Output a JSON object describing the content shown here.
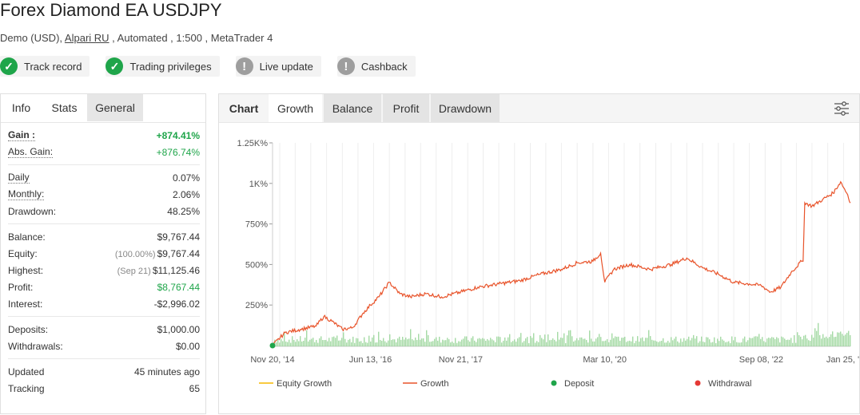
{
  "header": {
    "title": "Forex Diamond EA USDJPY",
    "account_type": "Demo (USD),",
    "broker": "Alpari RU",
    "details": ", Automated , 1:500 , MetaTrader 4"
  },
  "badges": [
    {
      "label": "Track record",
      "status": "verified",
      "icon": "check-icon"
    },
    {
      "label": "Trading privileges",
      "status": "verified",
      "icon": "check-icon"
    },
    {
      "label": "Live update",
      "status": "unverified",
      "icon": "exclamation-icon"
    },
    {
      "label": "Cashback",
      "status": "unverified",
      "icon": "exclamation-icon"
    }
  ],
  "left_tabs": {
    "info": "Info",
    "stats": "Stats",
    "general": "General"
  },
  "stats": {
    "gain": {
      "label": "Gain :",
      "value": "+874.41%"
    },
    "abs_gain": {
      "label": "Abs. Gain:",
      "value": "+876.74%"
    },
    "daily": {
      "label": "Daily",
      "value": "0.07%"
    },
    "monthly": {
      "label": "Monthly:",
      "value": "2.06%"
    },
    "drawdown": {
      "label": "Drawdown:",
      "value": "48.25%"
    },
    "balance": {
      "label": "Balance:",
      "value": "$9,767.44"
    },
    "equity": {
      "label": "Equity:",
      "note": "(100.00%)",
      "value": "$9,767.44"
    },
    "highest": {
      "label": "Highest:",
      "note": "(Sep 21)",
      "value": "$11,125.46"
    },
    "profit": {
      "label": "Profit:",
      "value": "$8,767.44"
    },
    "interest": {
      "label": "Interest:",
      "value": "-$2,996.02"
    },
    "deposits": {
      "label": "Deposits:",
      "value": "$1,000.00"
    },
    "withdrawals": {
      "label": "Withdrawals:",
      "value": "$0.00"
    },
    "updated": {
      "label": "Updated",
      "value": "45 minutes ago"
    },
    "tracking": {
      "label": "Tracking",
      "value": "65"
    }
  },
  "chart_tabs": {
    "label": "Chart",
    "growth": "Growth",
    "balance": "Balance",
    "profit": "Profit",
    "drawdown": "Drawdown"
  },
  "colors": {
    "growth": "#e8532a",
    "equity": "#f5b800",
    "deposit": "#1fa54a",
    "withdrawal": "#e53935",
    "volume": "#8fd18f",
    "green": "#1fa54a"
  },
  "chart_data": {
    "type": "line",
    "y_tick_labels": [
      "1.25K%",
      "1K%",
      "750%",
      "500%",
      "250%"
    ],
    "y_ticks": [
      1250,
      1000,
      750,
      500,
      250
    ],
    "ylim": [
      -5,
      1250
    ],
    "x_tick_labels": [
      "Nov 20, '14",
      "Jun 13, '16",
      "Nov 21, '17",
      "Mar 10, '20",
      "Sep 08, '22",
      "Jan 25, '24"
    ],
    "x_ticks": [
      "2014-11-20",
      "2016-06-13",
      "2017-11-21",
      "2020-03-10",
      "2022-09-08",
      "2024-01-25"
    ],
    "xlim": [
      "2014-11-20",
      "2024-02-10"
    ],
    "series": [
      {
        "name": "Growth",
        "points": [
          [
            "2014-11-20",
            0
          ],
          [
            "2015-02-01",
            80
          ],
          [
            "2015-05-01",
            100
          ],
          [
            "2015-08-01",
            120
          ],
          [
            "2015-09-15",
            180
          ],
          [
            "2015-11-01",
            150
          ],
          [
            "2016-01-01",
            100
          ],
          [
            "2016-03-01",
            110
          ],
          [
            "2016-05-01",
            200
          ],
          [
            "2016-06-13",
            250
          ],
          [
            "2016-08-01",
            300
          ],
          [
            "2016-10-01",
            390
          ],
          [
            "2016-12-01",
            320
          ],
          [
            "2017-02-01",
            300
          ],
          [
            "2017-05-01",
            320
          ],
          [
            "2017-08-01",
            300
          ],
          [
            "2017-11-21",
            330
          ],
          [
            "2018-03-01",
            360
          ],
          [
            "2018-07-01",
            380
          ],
          [
            "2018-11-01",
            400
          ],
          [
            "2019-03-01",
            440
          ],
          [
            "2019-07-01",
            470
          ],
          [
            "2019-10-01",
            510
          ],
          [
            "2020-01-01",
            520
          ],
          [
            "2020-02-15",
            570
          ],
          [
            "2020-03-10",
            390
          ],
          [
            "2020-05-01",
            470
          ],
          [
            "2020-08-01",
            500
          ],
          [
            "2020-12-01",
            470
          ],
          [
            "2021-04-01",
            500
          ],
          [
            "2021-07-01",
            540
          ],
          [
            "2021-10-01",
            480
          ],
          [
            "2022-01-01",
            440
          ],
          [
            "2022-04-01",
            390
          ],
          [
            "2022-07-01",
            380
          ],
          [
            "2022-09-08",
            370
          ],
          [
            "2022-11-01",
            330
          ],
          [
            "2023-01-01",
            360
          ],
          [
            "2023-03-01",
            450
          ],
          [
            "2023-05-01",
            520
          ],
          [
            "2023-05-10",
            520
          ],
          [
            "2023-05-20",
            880
          ],
          [
            "2023-07-01",
            860
          ],
          [
            "2023-09-01",
            900
          ],
          [
            "2023-11-01",
            940
          ],
          [
            "2023-12-15",
            1010
          ],
          [
            "2024-01-25",
            930
          ],
          [
            "2024-02-10",
            880
          ]
        ]
      }
    ],
    "legend": [
      "Equity Growth",
      "Growth",
      "Deposit",
      "Withdrawal"
    ],
    "legend_position": "bottom",
    "markers": [
      {
        "type": "Deposit",
        "x": "2014-11-20",
        "y": 0
      }
    ],
    "grid": "vertical"
  }
}
